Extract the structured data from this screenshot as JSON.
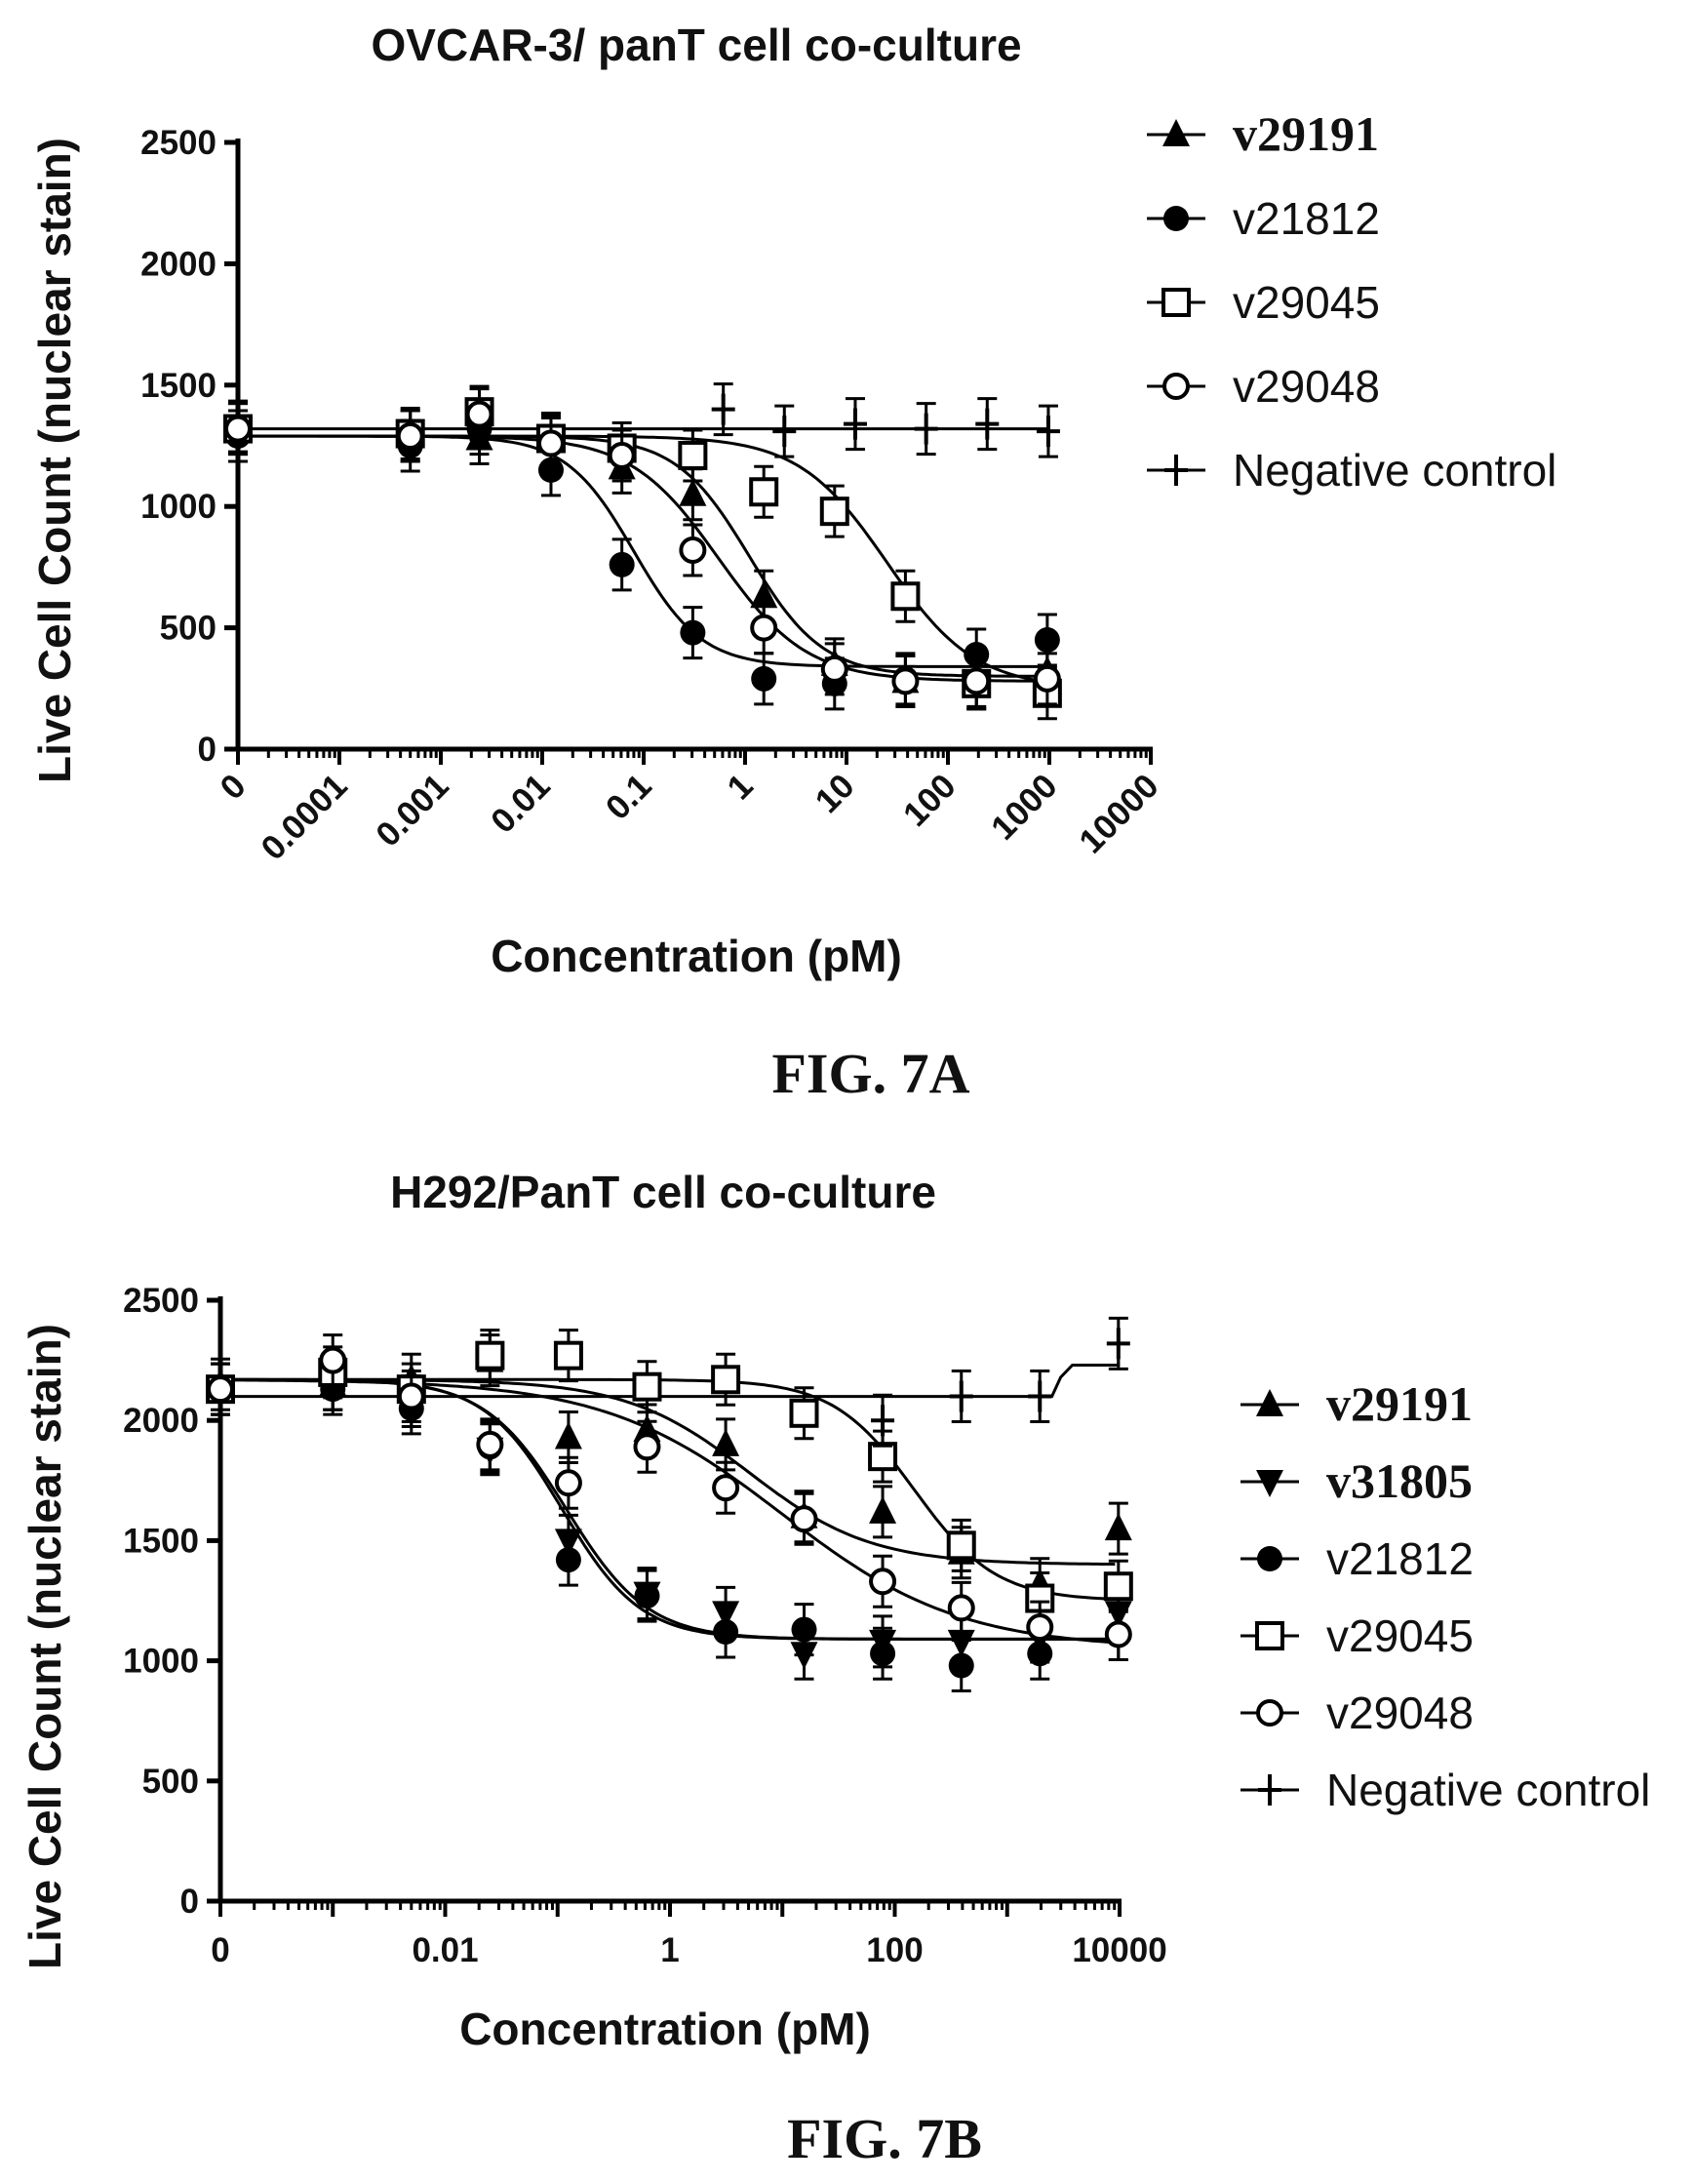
{
  "chart_data": [
    {
      "type": "scatter",
      "title": "OVCAR-3/ panT cell co-culture",
      "xlabel": "Concentration (pM)",
      "ylabel": "Live Cell Count (nuclear stain)",
      "x_scale": "log",
      "xlim": [
        1e-05,
        10000
      ],
      "ylim": [
        0,
        2500
      ],
      "x_tick_labels": [
        "0",
        "0.0001",
        "0.001",
        "0.01",
        "0.1",
        "1",
        "10",
        "100",
        "1000",
        "10000"
      ],
      "y_tick_labels": [
        "0",
        "500",
        "1000",
        "1500",
        "2000",
        "2500"
      ],
      "figure_label": "FIG. 7A",
      "legend_position": "right",
      "series": [
        {
          "name": "v29191",
          "marker": "triangle-up",
          "x": [
            0,
            0.0005,
            0.0024,
            0.0122,
            0.061,
            0.305,
            1.53,
            7.63,
            38.1,
            191,
            954
          ],
          "y": [
            1330,
            1290,
            1280,
            1270,
            1160,
            1050,
            630,
            350,
            280,
            270,
            320
          ],
          "fit": {
            "top": 1290,
            "bottom": 300,
            "ec50": 1.1,
            "hill": 1.2
          }
        },
        {
          "name": "v21812",
          "marker": "circle-filled",
          "x": [
            0,
            0.0005,
            0.0024,
            0.0122,
            0.061,
            0.305,
            1.53,
            7.63,
            38.1,
            191,
            954
          ],
          "y": [
            1290,
            1250,
            1320,
            1150,
            760,
            480,
            290,
            270,
            290,
            390,
            450
          ],
          "fit": {
            "top": 1290,
            "bottom": 340,
            "ec50": 0.08,
            "hill": 1.3
          }
        },
        {
          "name": "v29045",
          "marker": "square-open",
          "x": [
            0,
            0.0005,
            0.0024,
            0.0122,
            0.061,
            0.305,
            1.53,
            7.63,
            38.1,
            191,
            954
          ],
          "y": [
            1320,
            1300,
            1390,
            1280,
            1240,
            1210,
            1060,
            980,
            630,
            270,
            230
          ],
          "fit": {
            "top": 1290,
            "bottom": 250,
            "ec50": 25,
            "hill": 1.0
          }
        },
        {
          "name": "v29048",
          "marker": "circle-open",
          "x": [
            0,
            0.0005,
            0.0024,
            0.0122,
            0.061,
            0.305,
            1.53,
            7.63,
            38.1,
            191,
            954
          ],
          "y": [
            1320,
            1290,
            1380,
            1260,
            1210,
            820,
            500,
            330,
            280,
            280,
            290
          ],
          "fit": {
            "top": 1290,
            "bottom": 280,
            "ec50": 0.55,
            "hill": 1.0
          }
        },
        {
          "name": "Negative control",
          "marker": "plus",
          "x": [
            0.61,
            2.44,
            12.2,
            61,
            244,
            977
          ],
          "y": [
            1400,
            1310,
            1340,
            1320,
            1340,
            1310
          ],
          "line": 1320
        }
      ]
    },
    {
      "type": "scatter",
      "title": "H292/PanT cell co-culture",
      "xlabel": "Concentration (pM)",
      "ylabel": "Live Cell Count (nuclear stain)",
      "x_scale": "log",
      "xlim": [
        0.0001,
        10000
      ],
      "ylim": [
        0,
        2500
      ],
      "x_tick_labels": [
        "0",
        "0.01",
        "1",
        "100",
        "10000"
      ],
      "y_tick_labels": [
        "0",
        "500",
        "1000",
        "1500",
        "2000",
        "2500"
      ],
      "figure_label": "FIG. 7B",
      "legend_position": "right",
      "series": [
        {
          "name": "v29191",
          "marker": "triangle-up",
          "x": [
            0,
            0.001,
            0.005,
            0.025,
            0.125,
            0.625,
            3.13,
            15.6,
            78,
            391,
            1953,
            9766
          ],
          "y": [
            2150,
            2150,
            2170,
            2250,
            1930,
            1960,
            1900,
            1600,
            1620,
            1450,
            1320,
            1550
          ],
          "fit": {
            "top": 2170,
            "bottom": 1400,
            "ec50": 5,
            "hill": 0.8
          }
        },
        {
          "name": "v31805",
          "marker": "triangle-down",
          "x": [
            0,
            0.001,
            0.005,
            0.025,
            0.125,
            0.625,
            3.13,
            15.6,
            78,
            391,
            1953,
            9766
          ],
          "y": [
            2130,
            2150,
            2080,
            1880,
            1500,
            1280,
            1200,
            1030,
            1080,
            1080,
            1100,
            1200
          ],
          "fit": {
            "top": 2170,
            "bottom": 1090,
            "ec50": 0.12,
            "hill": 1.2
          }
        },
        {
          "name": "v21812",
          "marker": "circle-filled",
          "x": [
            0,
            0.001,
            0.005,
            0.025,
            0.125,
            0.625,
            3.13,
            15.6,
            78,
            391,
            1953,
            9766
          ],
          "y": [
            2130,
            2130,
            2050,
            1890,
            1420,
            1270,
            1120,
            1130,
            1030,
            980,
            1030,
            1110
          ],
          "fit": {
            "top": 2170,
            "bottom": 1090,
            "ec50": 0.11,
            "hill": 1.25
          }
        },
        {
          "name": "v29045",
          "marker": "square-open",
          "x": [
            0,
            0.001,
            0.005,
            0.025,
            0.125,
            0.625,
            3.13,
            15.6,
            78,
            391,
            1953,
            9766
          ],
          "y": [
            2130,
            2200,
            2130,
            2270,
            2270,
            2140,
            2170,
            2030,
            1850,
            1480,
            1260,
            1310
          ],
          "fit": {
            "top": 2170,
            "bottom": 1250,
            "ec50": 150,
            "hill": 1.2
          }
        },
        {
          "name": "v29048",
          "marker": "circle-open",
          "x": [
            0,
            0.001,
            0.005,
            0.025,
            0.125,
            0.625,
            3.13,
            15.6,
            78,
            391,
            1953,
            9766
          ],
          "y": [
            2130,
            2250,
            2100,
            1900,
            1740,
            1890,
            1720,
            1590,
            1330,
            1220,
            1140,
            1110
          ],
          "fit": {
            "top": 2170,
            "bottom": 1050,
            "ec50": 10,
            "hill": 0.55
          }
        },
        {
          "name": "Negative control",
          "marker": "plus",
          "x": [
            78,
            391,
            1953,
            9766
          ],
          "y": [
            2000,
            2100,
            2100,
            2320
          ],
          "line_points": [
            [
              0.0001,
              2100
            ],
            [
              2500,
              2100
            ],
            [
              3000,
              2180
            ],
            [
              3800,
              2230
            ],
            [
              9766,
              2230
            ],
            [
              9766,
              2320
            ]
          ]
        }
      ]
    }
  ]
}
